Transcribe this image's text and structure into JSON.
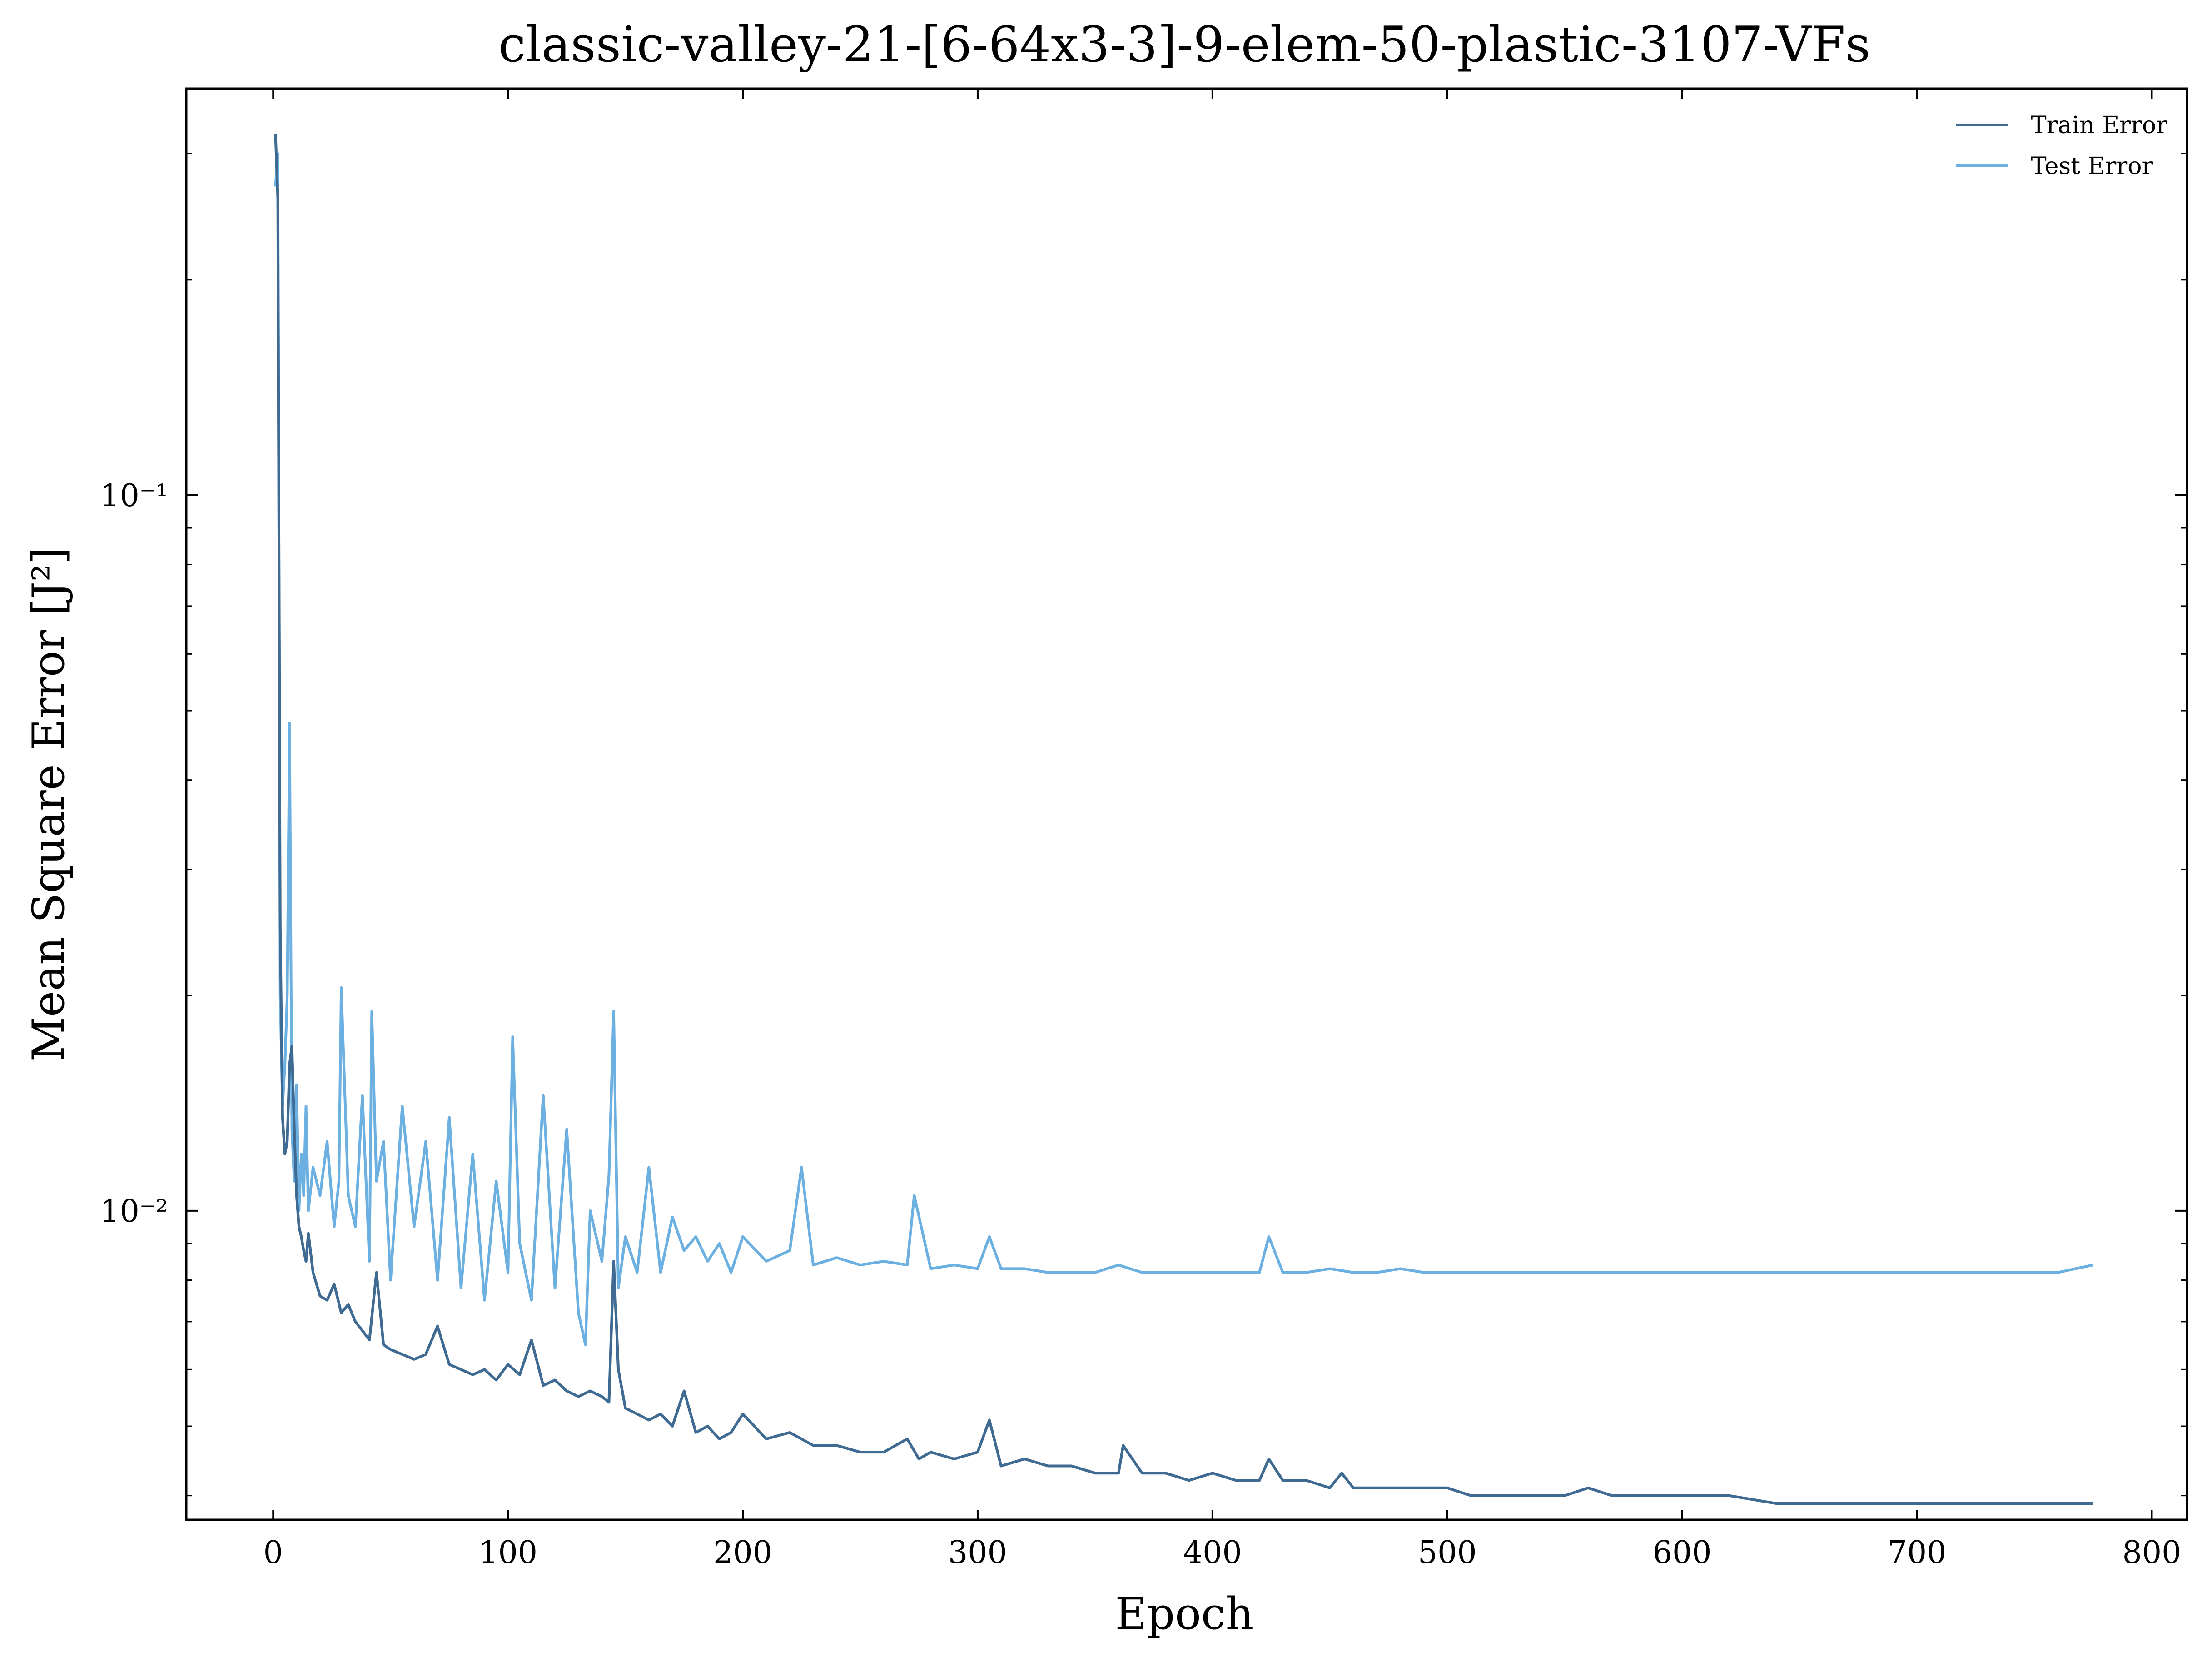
{
  "chart_data": {
    "type": "line",
    "title": "classic-valley-21-[6-64x3-3]-9-elem-50-plastic-3107-VFs",
    "xlabel": "Epoch",
    "ylabel": "Mean Square Error [J²]",
    "xlim": [
      -37,
      815
    ],
    "ylim": [
      0.0037,
      0.37
    ],
    "yscale": "log",
    "grid": false,
    "legend_position": "top-right",
    "xticks": [
      0,
      100,
      200,
      300,
      400,
      500,
      600,
      700,
      800
    ],
    "xtick_labels": [
      "0",
      "100",
      "200",
      "300",
      "400",
      "500",
      "600",
      "700",
      "800"
    ],
    "yticks": [
      0.1,
      0.01
    ],
    "ytick_labels": [
      "10⁻¹",
      "10⁻²"
    ],
    "series": [
      {
        "name": "Train Error",
        "color": "#3f6a92",
        "x": [
          1,
          2,
          3,
          4,
          5,
          6,
          7,
          8,
          9,
          10,
          11,
          12,
          13,
          14,
          15,
          17,
          20,
          23,
          26,
          29,
          32,
          35,
          38,
          41,
          44,
          47,
          50,
          55,
          60,
          65,
          70,
          75,
          80,
          85,
          90,
          95,
          100,
          105,
          110,
          115,
          120,
          125,
          130,
          135,
          140,
          143,
          145,
          147,
          150,
          155,
          160,
          165,
          170,
          175,
          180,
          185,
          190,
          195,
          200,
          210,
          220,
          230,
          240,
          250,
          260,
          270,
          275,
          280,
          290,
          300,
          305,
          310,
          320,
          330,
          340,
          350,
          360,
          362,
          370,
          380,
          390,
          400,
          410,
          420,
          424,
          430,
          440,
          450,
          455,
          460,
          470,
          480,
          490,
          500,
          510,
          520,
          530,
          540,
          550,
          560,
          570,
          580,
          590,
          600,
          620,
          640,
          660,
          680,
          700,
          720,
          740,
          760,
          775
        ],
        "y": [
          0.32,
          0.26,
          0.025,
          0.0135,
          0.012,
          0.0125,
          0.016,
          0.017,
          0.013,
          0.0105,
          0.0095,
          0.0092,
          0.0088,
          0.0085,
          0.0093,
          0.0082,
          0.0076,
          0.0075,
          0.0079,
          0.0072,
          0.0074,
          0.007,
          0.0068,
          0.0066,
          0.0082,
          0.0065,
          0.0064,
          0.0063,
          0.0062,
          0.0063,
          0.0069,
          0.0061,
          0.006,
          0.0059,
          0.006,
          0.0058,
          0.0061,
          0.0059,
          0.0066,
          0.0057,
          0.0058,
          0.0056,
          0.0055,
          0.0056,
          0.0055,
          0.0054,
          0.0085,
          0.006,
          0.0053,
          0.0052,
          0.0051,
          0.0052,
          0.005,
          0.0056,
          0.0049,
          0.005,
          0.0048,
          0.0049,
          0.0052,
          0.0048,
          0.0049,
          0.0047,
          0.0047,
          0.0046,
          0.0046,
          0.0048,
          0.0045,
          0.0046,
          0.0045,
          0.0046,
          0.0051,
          0.0044,
          0.0045,
          0.0044,
          0.0044,
          0.0043,
          0.0043,
          0.0047,
          0.0043,
          0.0043,
          0.0042,
          0.0043,
          0.0042,
          0.0042,
          0.0045,
          0.0042,
          0.0042,
          0.0041,
          0.0043,
          0.0041,
          0.0041,
          0.0041,
          0.0041,
          0.0041,
          0.004,
          0.004,
          0.004,
          0.004,
          0.004,
          0.0041,
          0.004,
          0.004,
          0.004,
          0.004,
          0.004,
          0.0039,
          0.0039,
          0.0039,
          0.0039,
          0.0039,
          0.0039,
          0.0039,
          0.0039
        ]
      },
      {
        "name": "Test Error",
        "color": "#6cb0e2",
        "x": [
          1,
          2,
          3,
          4,
          5,
          6,
          7,
          8,
          9,
          10,
          11,
          12,
          13,
          14,
          15,
          17,
          20,
          23,
          26,
          28,
          29,
          32,
          35,
          38,
          41,
          42,
          44,
          47,
          50,
          55,
          60,
          65,
          70,
          75,
          80,
          85,
          90,
          95,
          100,
          102,
          105,
          110,
          115,
          120,
          125,
          130,
          133,
          135,
          140,
          143,
          145,
          147,
          150,
          155,
          160,
          165,
          170,
          175,
          180,
          185,
          190,
          195,
          200,
          210,
          220,
          225,
          230,
          240,
          250,
          260,
          270,
          273,
          280,
          290,
          300,
          305,
          310,
          320,
          330,
          340,
          350,
          360,
          370,
          380,
          390,
          400,
          410,
          420,
          424,
          430,
          440,
          450,
          460,
          470,
          480,
          490,
          500,
          510,
          520,
          530,
          540,
          550,
          560,
          570,
          580,
          590,
          600,
          620,
          640,
          660,
          680,
          700,
          720,
          740,
          760,
          775
        ],
        "y": [
          0.27,
          0.3,
          0.02,
          0.014,
          0.016,
          0.02,
          0.048,
          0.013,
          0.011,
          0.015,
          0.01,
          0.012,
          0.0105,
          0.014,
          0.01,
          0.0115,
          0.0105,
          0.0125,
          0.0095,
          0.011,
          0.0205,
          0.0105,
          0.0095,
          0.0145,
          0.0085,
          0.019,
          0.011,
          0.0125,
          0.008,
          0.014,
          0.0095,
          0.0125,
          0.008,
          0.0135,
          0.0078,
          0.012,
          0.0075,
          0.011,
          0.0082,
          0.0175,
          0.009,
          0.0075,
          0.0145,
          0.0078,
          0.013,
          0.0072,
          0.0065,
          0.01,
          0.0085,
          0.0112,
          0.019,
          0.0078,
          0.0092,
          0.0082,
          0.0115,
          0.0082,
          0.0098,
          0.0088,
          0.0092,
          0.0085,
          0.009,
          0.0082,
          0.0092,
          0.0085,
          0.0088,
          0.0115,
          0.0084,
          0.0086,
          0.0084,
          0.0085,
          0.0084,
          0.0105,
          0.0083,
          0.0084,
          0.0083,
          0.0092,
          0.0083,
          0.0083,
          0.0082,
          0.0082,
          0.0082,
          0.0084,
          0.0082,
          0.0082,
          0.0082,
          0.0082,
          0.0082,
          0.0082,
          0.0092,
          0.0082,
          0.0082,
          0.0083,
          0.0082,
          0.0082,
          0.0083,
          0.0082,
          0.0082,
          0.0082,
          0.0082,
          0.0082,
          0.0082,
          0.0082,
          0.0082,
          0.0082,
          0.0082,
          0.0082,
          0.0082,
          0.0082,
          0.0082,
          0.0082,
          0.0082,
          0.0082,
          0.0082,
          0.0082,
          0.0082,
          0.0084
        ]
      }
    ]
  }
}
